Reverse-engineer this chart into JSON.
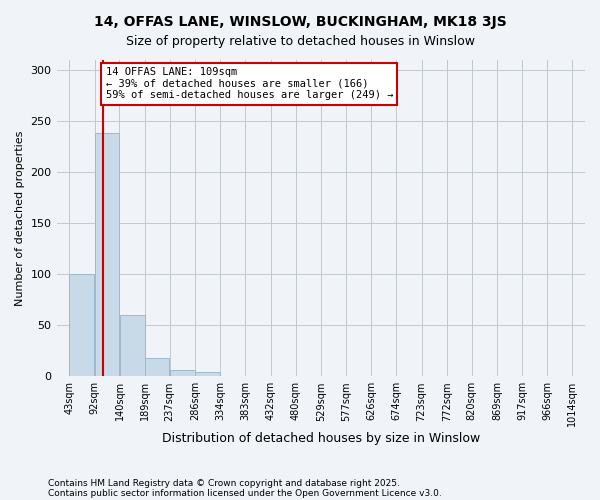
{
  "title_line1": "14, OFFAS LANE, WINSLOW, BUCKINGHAM, MK18 3JS",
  "title_line2": "Size of property relative to detached houses in Winslow",
  "xlabel": "Distribution of detached houses by size in Winslow",
  "ylabel": "Number of detached properties",
  "bar_edges": [
    43,
    92,
    140,
    189,
    237,
    286,
    334,
    383,
    432,
    480,
    529,
    577,
    626,
    674,
    723,
    772,
    820,
    869,
    917,
    966,
    1014
  ],
  "bar_heights": [
    100,
    238,
    60,
    18,
    6,
    4,
    0,
    0,
    0,
    0,
    0,
    0,
    0,
    0,
    0,
    0,
    0,
    0,
    0,
    0
  ],
  "bar_color": "#c8d9e8",
  "bar_edge_color": "#a0b8cc",
  "grid_color": "#c0c8d0",
  "property_size": 109,
  "vline_color": "#cc0000",
  "annotation_text": "14 OFFAS LANE: 109sqm\n← 39% of detached houses are smaller (166)\n59% of semi-detached houses are larger (249) →",
  "annotation_box_color": "#ffffff",
  "annotation_border_color": "#cc0000",
  "ylim": [
    0,
    310
  ],
  "yticks": [
    0,
    50,
    100,
    150,
    200,
    250,
    300
  ],
  "tick_labels": [
    "43sqm",
    "92sqm",
    "140sqm",
    "189sqm",
    "237sqm",
    "286sqm",
    "334sqm",
    "383sqm",
    "432sqm",
    "480sqm",
    "529sqm",
    "577sqm",
    "626sqm",
    "674sqm",
    "723sqm",
    "772sqm",
    "820sqm",
    "869sqm",
    "917sqm",
    "966sqm",
    "1014sqm"
  ],
  "footnote1": "Contains HM Land Registry data © Crown copyright and database right 2025.",
  "footnote2": "Contains public sector information licensed under the Open Government Licence v3.0.",
  "bg_color": "#f0f4f8"
}
